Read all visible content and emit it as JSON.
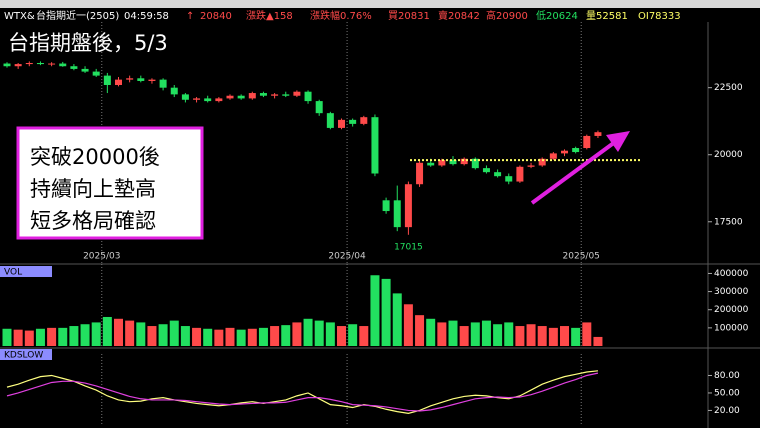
{
  "header": {
    "symbol": "WTX&",
    "name": "台指期近一(2505)",
    "time": "04:59:58",
    "direction": "↑",
    "last": "20840",
    "change": "漲跌▲158",
    "change_pct": "漲跌幅0.76%",
    "bid": "買20831",
    "ask": "賣20842",
    "high": "高20900",
    "low": "低20624",
    "volume": "量52581",
    "oi": "OI78333"
  },
  "chart_data": [
    {
      "type": "candlestick",
      "title": "台指期盤後，5/3",
      "annotations": [
        "突破20000後",
        "持續向上墊高",
        "短多格局確認"
      ],
      "min_label": "17015",
      "reference_line": 19800,
      "up_color": "#ff4a4a",
      "down_color": "#22e060",
      "reference_color": "#ffff66",
      "categories": [
        null,
        null,
        null,
        null,
        null,
        null,
        null,
        null,
        null,
        "2025/03",
        null,
        null,
        null,
        null,
        null,
        null,
        null,
        null,
        null,
        null,
        null,
        null,
        null,
        null,
        null,
        null,
        null,
        null,
        null,
        null,
        null,
        "2025/04",
        null,
        null,
        null,
        null,
        null,
        null,
        null,
        null,
        null,
        null,
        null,
        null,
        null,
        null,
        null,
        null,
        null,
        null,
        null,
        null,
        "2025/05",
        null
      ],
      "open": [
        23400,
        23300,
        23380,
        23420,
        23380,
        23400,
        23300,
        23200,
        23100,
        22950,
        22600,
        22800,
        22850,
        22750,
        22800,
        22500,
        22250,
        22050,
        22100,
        22000,
        22100,
        22200,
        22100,
        22300,
        22200,
        22250,
        22200,
        22350,
        22000,
        21550,
        21000,
        21300,
        21150,
        21400,
        18300,
        18300,
        17300,
        18900,
        19700,
        19600,
        19800,
        19650,
        19850,
        19500,
        19350,
        19200,
        19000,
        19550,
        19600,
        19850,
        20050,
        20250,
        20250,
        20700
      ],
      "high": [
        23450,
        23420,
        23480,
        23480,
        23450,
        23460,
        23380,
        23300,
        23200,
        23050,
        22900,
        22950,
        22950,
        22850,
        22850,
        22600,
        22300,
        22150,
        22200,
        22150,
        22250,
        22250,
        22350,
        22350,
        22300,
        22350,
        22400,
        22400,
        22050,
        21600,
        21350,
        21350,
        21450,
        21500,
        18400,
        18850,
        19000,
        19800,
        19850,
        19850,
        19950,
        19900,
        19900,
        19600,
        19450,
        19300,
        19600,
        19700,
        19900,
        20100,
        20200,
        20300,
        20750,
        20900
      ],
      "low": [
        23250,
        23200,
        23300,
        23340,
        23300,
        23280,
        23150,
        23050,
        22900,
        22300,
        22550,
        22700,
        22700,
        22650,
        22400,
        22150,
        21950,
        21950,
        21950,
        21950,
        22050,
        22050,
        22050,
        22150,
        22100,
        22150,
        22150,
        21900,
        21450,
        20950,
        20950,
        21050,
        21100,
        19200,
        17800,
        17150,
        17015,
        18800,
        19550,
        19550,
        19600,
        19600,
        19450,
        19300,
        19150,
        18900,
        18950,
        19500,
        19550,
        19800,
        19950,
        20050,
        20200,
        20624
      ],
      "close": [
        23300,
        23380,
        23420,
        23380,
        23400,
        23300,
        23200,
        23100,
        22950,
        22600,
        22800,
        22850,
        22750,
        22800,
        22500,
        22250,
        22050,
        22100,
        22000,
        22100,
        22200,
        22100,
        22300,
        22200,
        22250,
        22200,
        22350,
        22000,
        21550,
        21000,
        21300,
        21150,
        21400,
        19300,
        17900,
        17300,
        18900,
        19700,
        19600,
        19800,
        19650,
        19850,
        19500,
        19350,
        19200,
        19000,
        19550,
        19600,
        19850,
        20050,
        20150,
        20100,
        20700,
        20840
      ],
      "ylim": [
        16000,
        24800
      ],
      "yticks": [
        17500,
        20000,
        22500
      ]
    },
    {
      "type": "bar",
      "title": "VOL",
      "values": [
        95000,
        90000,
        85000,
        95000,
        100000,
        100000,
        110000,
        120000,
        130000,
        160000,
        150000,
        140000,
        130000,
        110000,
        120000,
        140000,
        110000,
        100000,
        95000,
        90000,
        100000,
        90000,
        95000,
        100000,
        110000,
        115000,
        130000,
        150000,
        140000,
        130000,
        110000,
        120000,
        110000,
        390000,
        370000,
        290000,
        230000,
        170000,
        150000,
        130000,
        140000,
        110000,
        130000,
        140000,
        120000,
        130000,
        110000,
        120000,
        110000,
        100000,
        110000,
        100000,
        130000,
        50000
      ],
      "ylim": [
        0,
        430000
      ],
      "yticks": [
        100000,
        200000,
        300000,
        400000
      ]
    },
    {
      "type": "line",
      "title": "KDSLOW",
      "series": [
        {
          "color": "#ffff80",
          "values": [
            60,
            65,
            72,
            78,
            80,
            75,
            70,
            62,
            55,
            45,
            38,
            35,
            36,
            40,
            42,
            38,
            35,
            32,
            30,
            28,
            30,
            33,
            35,
            32,
            35,
            38,
            45,
            50,
            40,
            30,
            28,
            25,
            30,
            27,
            22,
            18,
            15,
            20,
            28,
            34,
            40,
            44,
            46,
            45,
            42,
            40,
            45,
            55,
            65,
            72,
            78,
            82,
            86,
            88
          ]
        },
        {
          "color": "#e040e0",
          "values": [
            45,
            50,
            56,
            62,
            68,
            70,
            70,
            67,
            62,
            56,
            50,
            44,
            40,
            38,
            38,
            38,
            37,
            35,
            33,
            31,
            30,
            31,
            32,
            33,
            33,
            34,
            38,
            42,
            42,
            39,
            35,
            30,
            29,
            28,
            26,
            23,
            20,
            19,
            21,
            25,
            30,
            35,
            40,
            42,
            43,
            42,
            43,
            47,
            53,
            60,
            67,
            73,
            80,
            84
          ]
        }
      ],
      "ylim": [
        -5,
        110
      ],
      "yticks": [
        {
          "value": 20,
          "label": "20.00"
        },
        {
          "value": 50,
          "label": "50.00"
        },
        {
          "value": 80,
          "label": "80.00"
        }
      ]
    }
  ]
}
